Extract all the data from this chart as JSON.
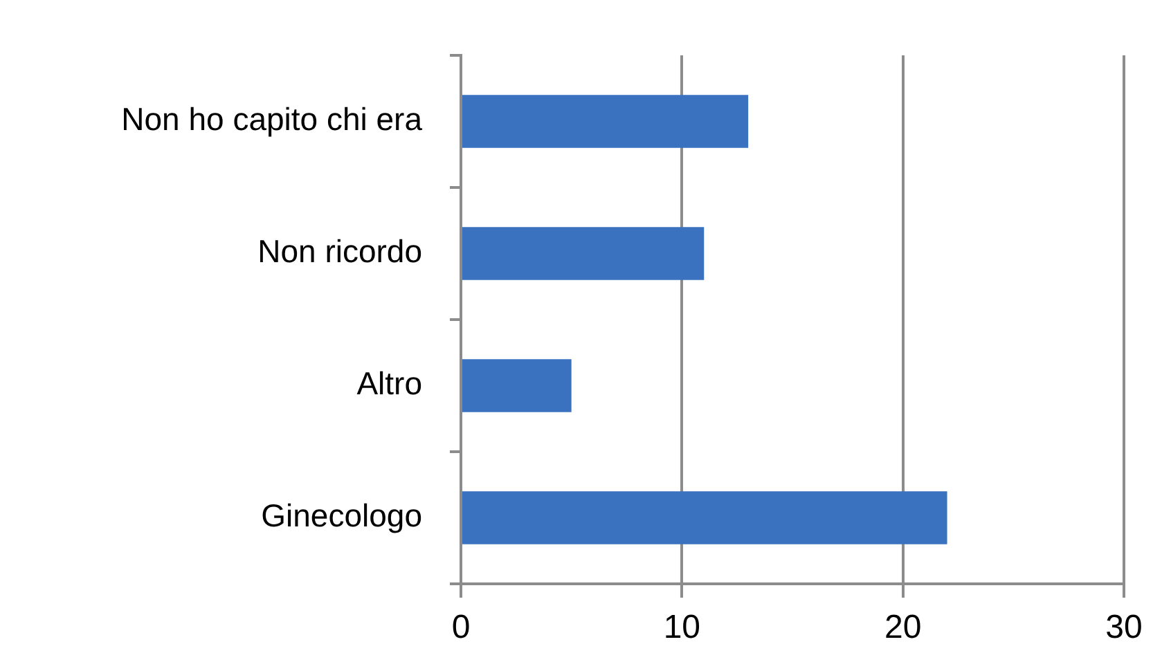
{
  "chart_data": {
    "type": "bar",
    "orientation": "horizontal",
    "categories": [
      "Non ho capito chi era",
      "Non ricordo",
      "Altro",
      "Ginecologo"
    ],
    "values": [
      13,
      11,
      5,
      22
    ],
    "color": "#3a72c0",
    "xlim": [
      0,
      30
    ],
    "xticks": [
      0,
      10,
      20,
      30
    ],
    "grid": "x"
  }
}
